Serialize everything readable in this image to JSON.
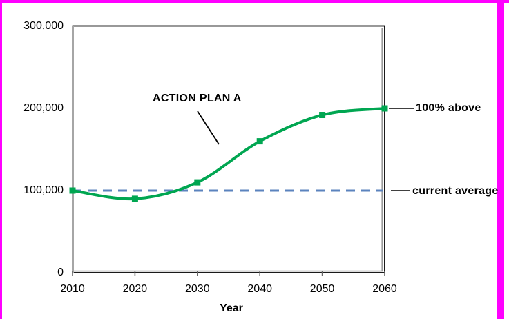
{
  "frame": {
    "border_color": "#FF00FF",
    "background": "#FFFFFF"
  },
  "chart_data": {
    "type": "line",
    "title": "",
    "xlabel": "Year",
    "ylabel": "",
    "x": [
      2010,
      2020,
      2030,
      2040,
      2050,
      2060
    ],
    "xtick_labels": [
      "2010",
      "2020",
      "2030",
      "2040",
      "2050",
      "2060"
    ],
    "series": [
      {
        "name": "ACTION PLAN A",
        "values": [
          100000,
          90000,
          110000,
          160000,
          192000,
          200000
        ],
        "color": "#00A651",
        "marker": "square",
        "line_style": "smooth-solid",
        "line_width": 4
      }
    ],
    "reference_line": {
      "value": 100000,
      "label": "current average",
      "style": "dashed",
      "color": "#5B83BE"
    },
    "annotations": [
      {
        "text": "100% above",
        "points_to": "2060 value of 200,000"
      }
    ],
    "ylim": [
      0,
      300000
    ],
    "yticks": {
      "values": [
        0,
        100000,
        200000,
        300000
      ],
      "labels": [
        "0",
        "100,000",
        "200,000",
        "300,000"
      ]
    },
    "grid": false,
    "legend": "none",
    "plot_frame_color": "#000000",
    "axis_shadow_color": "#A0A0A0"
  }
}
